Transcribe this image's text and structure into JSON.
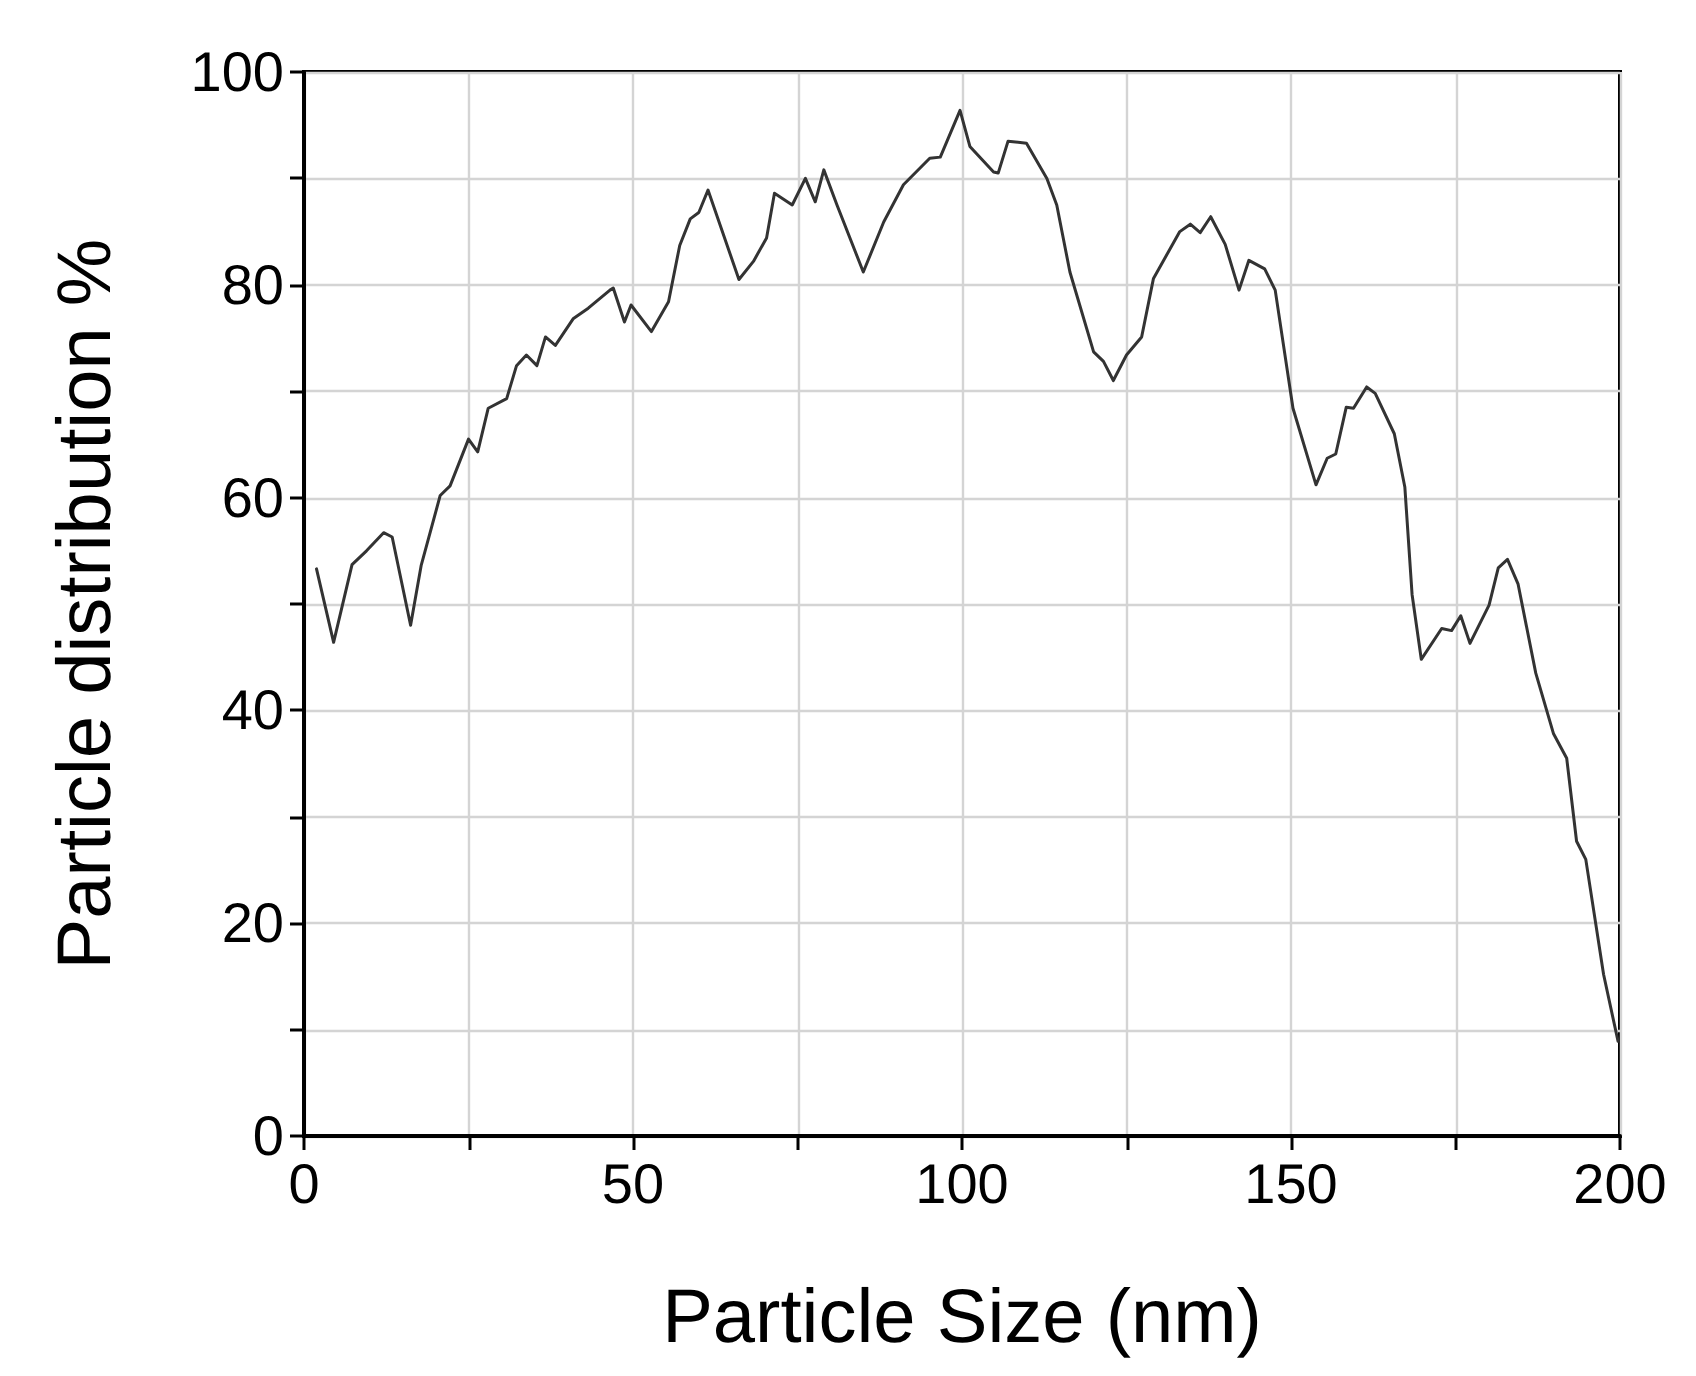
{
  "chart_data": {
    "type": "line",
    "xlabel": "Particle Size (nm)",
    "ylabel": "Particle distribution %",
    "xlim": [
      0,
      200
    ],
    "ylim": [
      0,
      100
    ],
    "xticks": [
      0,
      {
        "value": 25,
        "label": null
      },
      50,
      {
        "value": 75,
        "label": null
      },
      100,
      {
        "value": 125,
        "label": null
      },
      150,
      {
        "value": 175,
        "label": null
      },
      200
    ],
    "yticks": [
      0,
      {
        "value": 10,
        "label": null
      },
      20,
      {
        "value": 30,
        "label": null
      },
      40,
      {
        "value": 50,
        "label": null
      },
      60,
      {
        "value": 70,
        "label": null
      },
      80,
      {
        "value": 90,
        "label": null
      },
      100
    ],
    "grid": true,
    "marker": "none",
    "line_style": "solid",
    "series": [
      {
        "color": "#333333",
        "x": [
          1.9,
          4.5,
          7.3,
          9.5,
          12.1,
          13.4,
          16.2,
          17.8,
          20.7,
          22.2,
          25.0,
          26.4,
          28.0,
          30.8,
          32.3,
          33.8,
          35.4,
          36.7,
          38.2,
          40.9,
          43.2,
          46.5,
          47.0,
          48.7,
          49.7,
          52.8,
          55.4,
          57.1,
          58.7,
          60.0,
          61.4,
          66.1,
          68.3,
          70.3,
          71.5,
          74.2,
          76.2,
          77.7,
          79.0,
          81.0,
          85.0,
          88.1,
          91.1,
          95.1,
          96.7,
          99.7,
          101.2,
          104.8,
          105.5,
          107.0,
          109.8,
          112.9,
          114.4,
          116.4,
          120.0,
          121.5,
          123.0,
          125.0,
          127.3,
          129.1,
          133.1,
          134.7,
          136.2,
          137.8,
          140.0,
          142.1,
          143.6,
          146.0,
          147.6,
          150.3,
          153.8,
          155.5,
          156.8,
          158.4,
          159.5,
          161.5,
          162.8,
          165.7,
          167.3,
          168.4,
          169.8,
          172.9,
          174.4,
          175.8,
          177.2,
          180.1,
          181.5,
          182.9,
          184.5,
          187.2,
          189.9,
          191.9,
          193.4,
          194.8,
          197.5,
          199.7
        ],
        "values": [
          53.3,
          46.4,
          53.7,
          55.0,
          56.7,
          56.3,
          48.0,
          53.6,
          60.2,
          61.1,
          65.5,
          64.3,
          68.4,
          69.3,
          72.4,
          73.4,
          72.4,
          75.1,
          74.3,
          76.8,
          77.8,
          79.5,
          79.7,
          76.5,
          78.1,
          75.6,
          78.4,
          83.7,
          86.2,
          86.8,
          88.9,
          80.5,
          82.2,
          84.4,
          88.6,
          87.5,
          90.0,
          87.8,
          90.8,
          87.5,
          81.2,
          85.9,
          89.4,
          91.9,
          92.0,
          96.4,
          93.0,
          90.6,
          90.5,
          93.5,
          93.3,
          90.0,
          87.5,
          81.2,
          73.7,
          72.8,
          71.0,
          73.4,
          75.1,
          80.6,
          85.0,
          85.7,
          84.9,
          86.4,
          83.8,
          79.5,
          82.3,
          81.5,
          79.5,
          68.4,
          61.2,
          63.7,
          64.1,
          68.5,
          68.4,
          70.4,
          69.8,
          66.0,
          61.0,
          50.9,
          44.8,
          47.7,
          47.5,
          48.9,
          46.3,
          49.9,
          53.4,
          54.2,
          51.9,
          43.5,
          37.8,
          35.5,
          27.7,
          26.0,
          15.2,
          8.9
        ]
      }
    ]
  }
}
